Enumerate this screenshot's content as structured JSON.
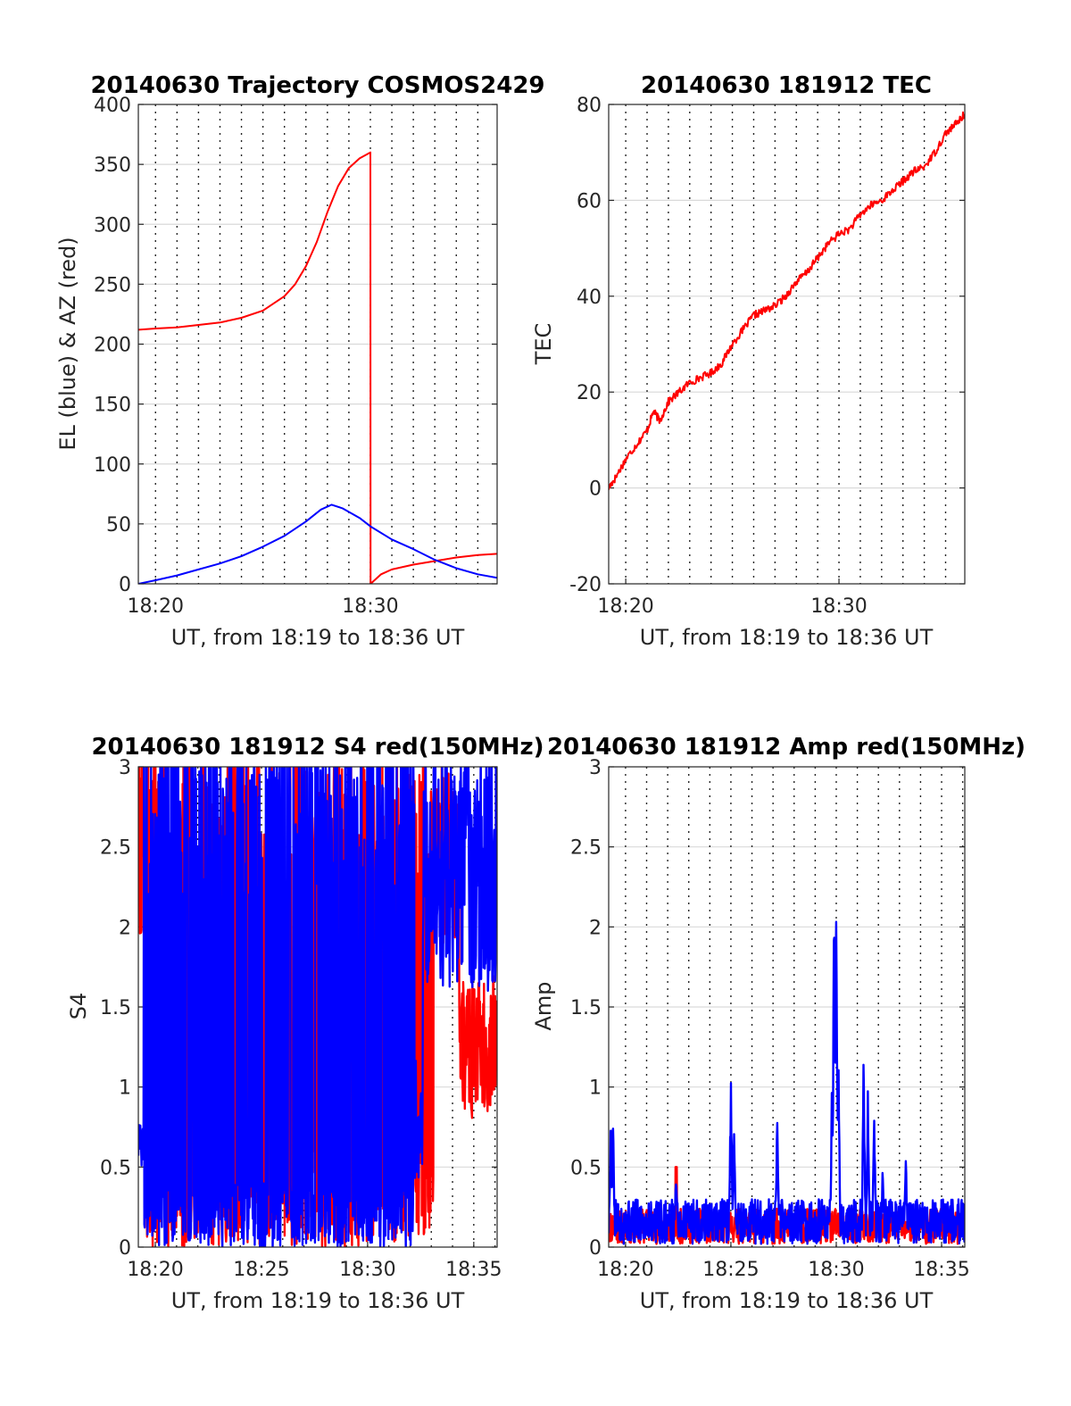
{
  "figure": {
    "background": "#ffffff"
  },
  "chart_data": [
    {
      "id": "trajectory",
      "type": "line",
      "title": "20140630 Trajectory COSMOS2429",
      "xlabel": "UT, from 18:19 to 18:36 UT",
      "ylabel": "EL (blue) & AZ (red)",
      "xlim_minutes_past_18": [
        19.2,
        35.9
      ],
      "ylim": [
        0,
        400
      ],
      "yticks": [
        0,
        50,
        100,
        150,
        200,
        250,
        300,
        350,
        400
      ],
      "xticks": [
        {
          "m": 20,
          "label": "18:20"
        },
        {
          "m": 30,
          "label": "18:30"
        }
      ],
      "grid": true,
      "series": [
        {
          "color": "#ff0000",
          "points": [
            [
              19.2,
              212
            ],
            [
              20,
              213
            ],
            [
              21,
              214
            ],
            [
              22,
              216
            ],
            [
              23,
              218
            ],
            [
              24,
              222
            ],
            [
              25,
              228
            ],
            [
              26,
              240
            ],
            [
              26.5,
              250
            ],
            [
              27,
              265
            ],
            [
              27.5,
              285
            ],
            [
              28,
              310
            ],
            [
              28.5,
              332
            ],
            [
              29,
              347
            ],
            [
              29.5,
              355
            ],
            [
              30,
              360
            ],
            [
              30.01,
              0
            ],
            [
              30.5,
              8
            ],
            [
              31,
              12
            ],
            [
              32,
              16
            ],
            [
              33,
              19
            ],
            [
              34,
              22
            ],
            [
              35,
              24
            ],
            [
              35.9,
              25
            ]
          ]
        },
        {
          "color": "#0000ff",
          "points": [
            [
              19.2,
              0
            ],
            [
              20,
              3
            ],
            [
              21,
              7
            ],
            [
              22,
              12
            ],
            [
              23,
              17
            ],
            [
              24,
              23
            ],
            [
              25,
              31
            ],
            [
              26,
              40
            ],
            [
              27,
              52
            ],
            [
              27.7,
              62
            ],
            [
              28.2,
              66
            ],
            [
              28.7,
              63
            ],
            [
              29.5,
              55
            ],
            [
              30,
              48
            ],
            [
              31,
              37
            ],
            [
              32,
              29
            ],
            [
              33,
              20
            ],
            [
              34,
              13
            ],
            [
              35,
              8
            ],
            [
              35.9,
              5
            ]
          ]
        }
      ]
    },
    {
      "id": "tec",
      "type": "line",
      "title": "20140630 181912 TEC",
      "xlabel": "UT, from 18:19 to 18:36 UT",
      "ylabel": "TEC",
      "xlim_minutes_past_18": [
        19.2,
        35.9
      ],
      "ylim": [
        -20,
        80
      ],
      "yticks": [
        -20,
        0,
        20,
        40,
        60,
        80
      ],
      "xticks": [
        {
          "m": 20,
          "label": "18:20"
        },
        {
          "m": 30,
          "label": "18:30"
        }
      ],
      "grid": true,
      "series": [
        {
          "color": "#ff0000",
          "points": [
            [
              19.2,
              0
            ],
            [
              19.5,
              2
            ],
            [
              20,
              6
            ],
            [
              20.5,
              9
            ],
            [
              21,
              12
            ],
            [
              21.3,
              16
            ],
            [
              21.6,
              14
            ],
            [
              22,
              18
            ],
            [
              22.5,
              20
            ],
            [
              23,
              22
            ],
            [
              23.5,
              23
            ],
            [
              24,
              24
            ],
            [
              24.5,
              26
            ],
            [
              25,
              30
            ],
            [
              25.5,
              33
            ],
            [
              26,
              36
            ],
            [
              26.5,
              37
            ],
            [
              27,
              38
            ],
            [
              27.5,
              40
            ],
            [
              28,
              43
            ],
            [
              28.5,
              45
            ],
            [
              29,
              48
            ],
            [
              29.5,
              51
            ],
            [
              30,
              53
            ],
            [
              30.5,
              54
            ],
            [
              31,
              57
            ],
            [
              31.5,
              59
            ],
            [
              32,
              60
            ],
            [
              32.5,
              62
            ],
            [
              33,
              64
            ],
            [
              33.5,
              66
            ],
            [
              34,
              67
            ],
            [
              34.5,
              70
            ],
            [
              35,
              74
            ],
            [
              35.5,
              76
            ],
            [
              35.9,
              78
            ]
          ]
        }
      ]
    },
    {
      "id": "s4",
      "type": "line",
      "title": "20140630 181912 S4 red(150MHz)",
      "xlabel": "UT, from 18:19 to 18:36 UT",
      "ylabel": "S4",
      "xlim_minutes_past_18": [
        19.2,
        36.1
      ],
      "ylim": [
        0,
        3
      ],
      "yticks": [
        0,
        0.5,
        1,
        1.5,
        2,
        2.5,
        3
      ],
      "yticklabels": [
        "0",
        "0.5",
        "1",
        "1.5",
        "2",
        "2.5",
        "3"
      ],
      "xticks": [
        {
          "m": 20,
          "label": "18:20"
        },
        {
          "m": 25,
          "label": "18:25"
        },
        {
          "m": 30,
          "label": "18:30"
        },
        {
          "m": 35,
          "label": "18:35"
        }
      ],
      "grid": true,
      "series": [
        {
          "color": "#ff0000",
          "seed": 7,
          "style": "s4-red"
        },
        {
          "color": "#0000ff",
          "seed": 3,
          "style": "s4-blue"
        }
      ]
    },
    {
      "id": "amp",
      "type": "line",
      "title": "20140630 181912 Amp red(150MHz)",
      "xlabel": "UT, from 18:19 to 18:36 UT",
      "ylabel": "Amp",
      "xlim_minutes_past_18": [
        19.2,
        36.1
      ],
      "ylim": [
        0,
        3
      ],
      "yticks": [
        0,
        0.5,
        1,
        1.5,
        2,
        2.5,
        3
      ],
      "yticklabels": [
        "0",
        "0.5",
        "1",
        "1.5",
        "2",
        "2.5",
        "3"
      ],
      "xticks": [
        {
          "m": 20,
          "label": "18:20"
        },
        {
          "m": 25,
          "label": "18:25"
        },
        {
          "m": 30,
          "label": "18:30"
        },
        {
          "m": 35,
          "label": "18:35"
        }
      ],
      "grid": true,
      "spikes": [
        [
          19.3,
          0.8
        ],
        [
          19.4,
          0.88
        ],
        [
          22.4,
          0.52
        ],
        [
          25.0,
          1.08
        ],
        [
          25.15,
          0.8
        ],
        [
          27.2,
          0.85
        ],
        [
          29.8,
          1.1
        ],
        [
          29.9,
          2.3
        ],
        [
          30.0,
          2.32
        ],
        [
          30.1,
          1.3
        ],
        [
          31.3,
          1.23
        ],
        [
          31.5,
          1.0
        ],
        [
          31.8,
          0.88
        ],
        [
          32.2,
          0.5
        ],
        [
          33.3,
          0.62
        ]
      ],
      "series": [
        {
          "color": "#ff0000",
          "seed": 11,
          "style": "amp-red"
        },
        {
          "color": "#0000ff",
          "seed": 5,
          "style": "amp-blue"
        }
      ]
    }
  ]
}
